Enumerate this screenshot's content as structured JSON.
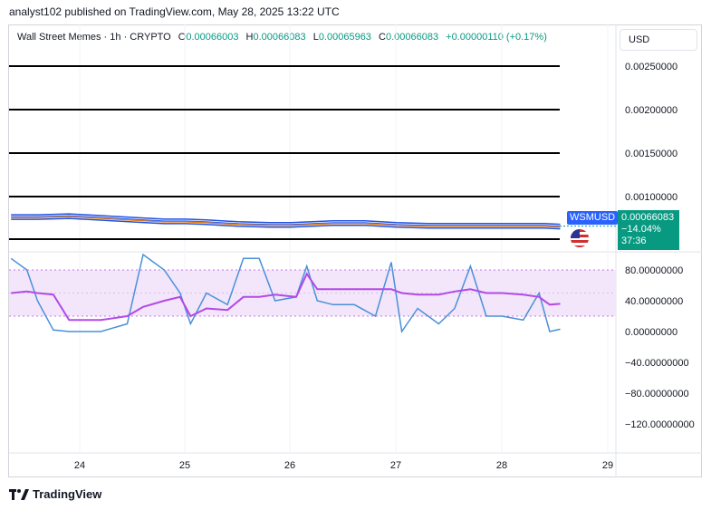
{
  "header": {
    "published": "analyst102 published on TradingView.com, May 28, 2025 13:22 UTC"
  },
  "legend": {
    "symbol_desc": "Wall Street Memes · 1h · CRYPTO",
    "open_label": "O",
    "open": "0.00066003",
    "high_label": "H",
    "high": "0.00066083",
    "low_label": "L",
    "low": "0.00065963",
    "close_label": "C",
    "close": "0.00066083",
    "change": "+0.00000110 (+0.17%)"
  },
  "currency_button": "USD",
  "price_tag": {
    "symbol": "WSMUSD",
    "price": "0.00066083",
    "change": "−14.04%",
    "countdown": "37:36"
  },
  "footer": {
    "brand": "TradingView",
    "logo_icon": "tradingview-logo-icon"
  },
  "colors": {
    "price_line": "#2962ff",
    "bollinger": "#1e53e5",
    "ma": "#f57c00",
    "rsi_line": "#b24ae6",
    "stoch_line": "#4a90d9",
    "rsi_band": "#f3e6fb",
    "up": "#089981"
  },
  "chart_data": [
    {
      "type": "line",
      "panel": "price",
      "x_ticks": [
        "24",
        "25",
        "26",
        "27",
        "28",
        "29"
      ],
      "y_ticks": [
        "0.00250000",
        "0.00200000",
        "0.00150000",
        "0.00100000"
      ],
      "ylim": [
        0.00026,
        0.0027
      ],
      "horizontal_lines": [
        0.0025,
        0.002,
        0.0015,
        0.001,
        0.00051
      ],
      "x": [
        23.35,
        23.6,
        23.9,
        24.2,
        24.5,
        24.8,
        25.0,
        25.2,
        25.5,
        25.8,
        26.0,
        26.2,
        26.4,
        26.7,
        27.0,
        27.3,
        27.6,
        27.9,
        28.2,
        28.4,
        28.55
      ],
      "series": [
        {
          "values": [
            0.00077,
            0.00077,
            0.00078,
            0.00076,
            0.00074,
            0.00072,
            0.00072,
            0.00071,
            0.00069,
            0.00068,
            0.00068,
            0.00069,
            0.0007,
            0.0007,
            0.00068,
            0.00067,
            0.00067,
            0.00067,
            0.00067,
            0.00067,
            0.00066
          ]
        }
      ]
    },
    {
      "type": "line",
      "panel": "oscillator",
      "x_ticks": [
        "24",
        "25",
        "26",
        "27",
        "28",
        "29"
      ],
      "y_ticks": [
        "80.00000000",
        "40.00000000",
        "0.00000000",
        "−40.00000000",
        "−80.00000000",
        "−120.00000000"
      ],
      "ylim": [
        -160,
        100
      ],
      "band": [
        20,
        80
      ],
      "x": [
        23.35,
        23.5,
        23.6,
        23.75,
        23.9,
        24.2,
        24.45,
        24.6,
        24.8,
        24.95,
        25.05,
        25.2,
        25.4,
        25.55,
        25.7,
        25.85,
        26.05,
        26.15,
        26.25,
        26.4,
        26.6,
        26.8,
        26.95,
        27.05,
        27.2,
        27.4,
        27.55,
        27.7,
        27.85,
        28.0,
        28.2,
        28.35,
        28.45,
        28.55
      ],
      "series": [
        {
          "values": [
            50,
            52,
            50,
            48,
            15,
            15,
            20,
            32,
            40,
            45,
            20,
            30,
            28,
            45,
            45,
            48,
            45,
            75,
            55,
            55,
            55,
            55,
            55,
            50,
            48,
            48,
            52,
            55,
            50,
            50,
            48,
            45,
            35,
            36
          ]
        },
        {
          "values": [
            95,
            80,
            40,
            2,
            0,
            0,
            10,
            100,
            80,
            50,
            10,
            50,
            35,
            95,
            95,
            40,
            45,
            85,
            40,
            35,
            35,
            20,
            90,
            0,
            30,
            10,
            30,
            85,
            20,
            20,
            15,
            50,
            0,
            3
          ]
        }
      ]
    }
  ]
}
